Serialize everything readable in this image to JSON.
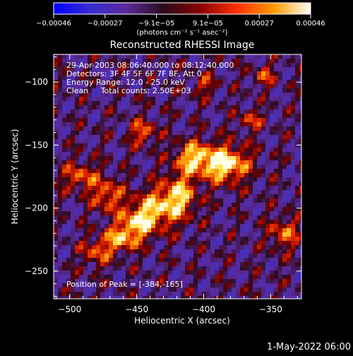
{
  "colorbar": {
    "ticks": [
      "-0.00046",
      "-0.00027",
      "-9.1e-05",
      "9.1e-05",
      "0.00027",
      "0.00046"
    ],
    "unit_label": "(photons cm⁻² s⁻¹ asec⁻²)",
    "colors": [
      "#0000ff",
      "#3a2bd0",
      "#5b2a9a",
      "#2a0a1a",
      "#8a0000",
      "#ff3000",
      "#ff9a00",
      "#ffffff"
    ]
  },
  "chart_data": {
    "type": "heatmap",
    "title": "Reconstructed RHESSI Image",
    "xlabel": "Heliocentric X (arcsec)",
    "ylabel": "Heliocentric Y (arcsec)",
    "xlim": [
      -512,
      -327
    ],
    "ylim": [
      -272,
      -78
    ],
    "xticks": [
      -500,
      -450,
      -400,
      -350
    ],
    "yticks": [
      -250,
      -200,
      -150,
      -100
    ],
    "xtick_labels": [
      "−500",
      "−450",
      "−400",
      "−350"
    ],
    "ytick_labels": [
      "−250",
      "−200",
      "−150",
      "−100"
    ],
    "value_range": [
      -0.00046,
      0.00046
    ],
    "annotations": [
      "29-Apr-2003 08:06:40.000 to 08:12:40.000",
      "Detectors: 3F 4F 5F 6F 7F 8F, Att 0",
      "Energy Range: 12.0 - 25.0 keV",
      "Clean     Total counts: 2.50E+03"
    ],
    "peak_label": "Position of Peak = [-384,-165]",
    "peak": {
      "x": -384,
      "y": -165
    },
    "sources": [
      {
        "x": -384,
        "y": -165,
        "sx": 12,
        "sy": 10,
        "amp": 1.0
      },
      {
        "x": -408,
        "y": -160,
        "sx": 10,
        "sy": 9,
        "amp": 0.75
      },
      {
        "x": -418,
        "y": -190,
        "sx": 9,
        "sy": 12,
        "amp": 0.7
      },
      {
        "x": -435,
        "y": -200,
        "sx": 12,
        "sy": 11,
        "amp": 0.65
      },
      {
        "x": -450,
        "y": -212,
        "sx": 10,
        "sy": 9,
        "amp": 0.7
      },
      {
        "x": -472,
        "y": -190,
        "sx": 8,
        "sy": 9,
        "amp": 0.6
      },
      {
        "x": -492,
        "y": -175,
        "sx": 9,
        "sy": 8,
        "amp": 0.55
      },
      {
        "x": -445,
        "y": -140,
        "sx": 7,
        "sy": 7,
        "amp": 0.55
      },
      {
        "x": -462,
        "y": -225,
        "sx": 9,
        "sy": 7,
        "amp": 0.65
      },
      {
        "x": -480,
        "y": -235,
        "sx": 8,
        "sy": 8,
        "amp": 0.5
      },
      {
        "x": -340,
        "y": -220,
        "sx": 8,
        "sy": 9,
        "amp": 0.55
      },
      {
        "x": -365,
        "y": -130,
        "sx": 6,
        "sy": 6,
        "amp": 0.45
      },
      {
        "x": -400,
        "y": -102,
        "sx": 6,
        "sy": 6,
        "amp": 0.4
      },
      {
        "x": -355,
        "y": -95,
        "sx": 6,
        "sy": 6,
        "amp": 0.45
      }
    ]
  },
  "footer": {
    "date": "1-May-2022 06:00"
  }
}
